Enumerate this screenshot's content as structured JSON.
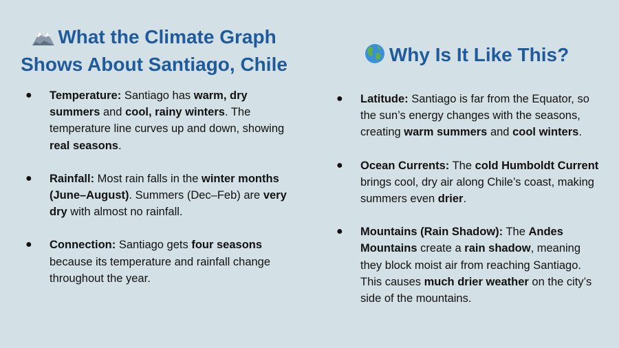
{
  "left": {
    "title": "What the Climate Graph Shows About Santiago, Chile",
    "title_icon": "mountain-icon",
    "items": [
      [
        {
          "t": "Temperature:",
          "b": true
        },
        {
          "t": " Santiago has "
        },
        {
          "t": "warm, dry summers",
          "b": true
        },
        {
          "t": " and "
        },
        {
          "t": "cool, rainy winters",
          "b": true
        },
        {
          "t": ". The temperature line curves up and down, showing "
        },
        {
          "t": "real seasons",
          "b": true
        },
        {
          "t": "."
        }
      ],
      [
        {
          "t": "Rainfall:",
          "b": true
        },
        {
          "t": " Most rain falls in the "
        },
        {
          "t": "winter months (June–August)",
          "b": true
        },
        {
          "t": ". Summers (Dec–Feb) are "
        },
        {
          "t": "very dry",
          "b": true
        },
        {
          "t": " with almost no rainfall."
        }
      ],
      [
        {
          "t": "Connection:",
          "b": true
        },
        {
          "t": " Santiago gets "
        },
        {
          "t": "four seasons",
          "b": true
        },
        {
          "t": " because its temperature and rainfall change throughout the year."
        }
      ]
    ]
  },
  "right": {
    "title": "Why Is It Like This?",
    "title_icon": "globe-icon",
    "items": [
      [
        {
          "t": "Latitude:",
          "b": true
        },
        {
          "t": " Santiago is far from the Equator, so the sun’s energy changes with the seasons, creating "
        },
        {
          "t": "warm summers",
          "b": true
        },
        {
          "t": " and "
        },
        {
          "t": "cool winters",
          "b": true
        },
        {
          "t": "."
        }
      ],
      [
        {
          "t": "Ocean Currents:",
          "b": true
        },
        {
          "t": " The "
        },
        {
          "t": "cold Humboldt Current",
          "b": true
        },
        {
          "t": " brings cool, dry air along Chile’s coast, making summers even "
        },
        {
          "t": "drier",
          "b": true
        },
        {
          "t": "."
        }
      ],
      [
        {
          "t": "Mountains (Rain Shadow):",
          "b": true
        },
        {
          "t": " The "
        },
        {
          "t": "Andes Mountains",
          "b": true
        },
        {
          "t": " create a "
        },
        {
          "t": "rain shadow",
          "b": true
        },
        {
          "t": ", meaning they block moist air from reaching Santiago. This causes "
        },
        {
          "t": "much drier weather",
          "b": true
        },
        {
          "t": " on the city’s side of the mountains."
        }
      ]
    ]
  },
  "colors": {
    "background": "#d3e1e7",
    "heading": "#1f5a9b",
    "text": "#111111"
  }
}
